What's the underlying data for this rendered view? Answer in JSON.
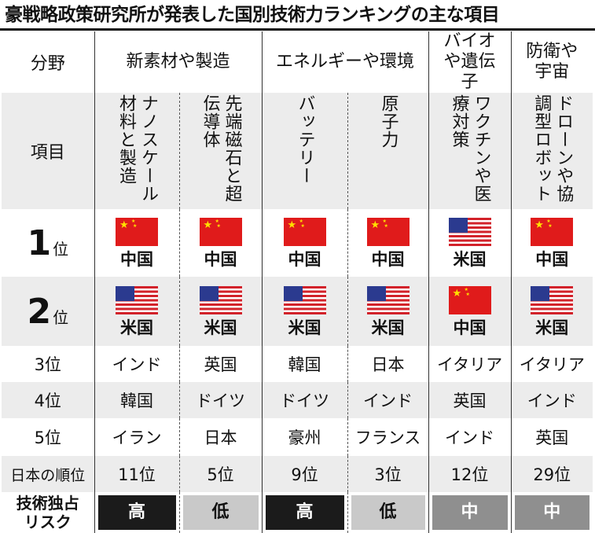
{
  "title": "豪戦略政策研究所が発表した国別技術力ランキングの主な項目",
  "row_labels": {
    "field": "分野",
    "item": "項目",
    "rank1_num": "1",
    "rank1_suffix": "位",
    "rank2_num": "2",
    "rank2_suffix": "位",
    "rank3": "3位",
    "rank4": "4位",
    "rank5": "5位",
    "japan_rank": "日本の順位",
    "risk": "技術独占リスク"
  },
  "fields": [
    {
      "label": "新素材や製造",
      "span": 2
    },
    {
      "label": "エネルギーや環境",
      "span": 2
    },
    {
      "label": "バイオや遺伝子",
      "span": 1
    },
    {
      "label": "防衛や宇宙",
      "span": 1
    }
  ],
  "columns": [
    {
      "item": "ナノスケール材料と製造",
      "rank1": "中国",
      "rank2": "米国",
      "rank3": "インド",
      "rank4": "韓国",
      "rank5": "イラン",
      "japan": "11位",
      "risk": "高"
    },
    {
      "item": "先端磁石と超伝導体",
      "rank1": "中国",
      "rank2": "米国",
      "rank3": "英国",
      "rank4": "ドイツ",
      "rank5": "日本",
      "japan": "5位",
      "risk": "低"
    },
    {
      "item": "バッテリー",
      "rank1": "中国",
      "rank2": "米国",
      "rank3": "韓国",
      "rank4": "ドイツ",
      "rank5": "豪州",
      "japan": "9位",
      "risk": "高"
    },
    {
      "item": "原子力",
      "rank1": "中国",
      "rank2": "米国",
      "rank3": "日本",
      "rank4": "インド",
      "rank5": "フランス",
      "japan": "3位",
      "risk": "低"
    },
    {
      "item": "ワクチンや医療対策",
      "rank1": "米国",
      "rank2": "中国",
      "rank3": "イタリア",
      "rank4": "英国",
      "rank5": "インド",
      "japan": "12位",
      "risk": "中"
    },
    {
      "item": "ドローンや協調型ロボット",
      "rank1": "中国",
      "rank2": "米国",
      "rank3": "イタリア",
      "rank4": "インド",
      "rank5": "英国",
      "japan": "29位",
      "risk": "中"
    }
  ],
  "flag_icons": {
    "中国": "china-flag-icon",
    "米国": "us-flag-icon"
  },
  "colors": {
    "risk_high": "#1b1b1b",
    "risk_low": "#c9c9c9",
    "risk_mid": "#8f8f8f",
    "china_red": "#e01b1b",
    "us_blue": "#2b3a8f"
  }
}
